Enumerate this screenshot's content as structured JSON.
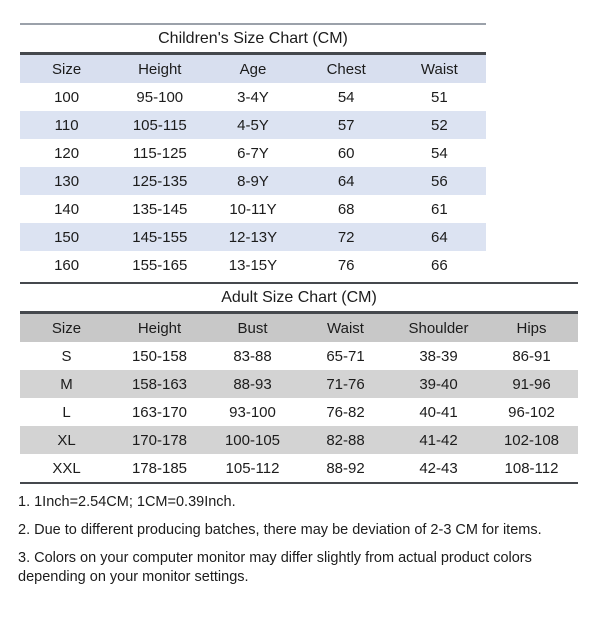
{
  "chart_data": [
    {
      "type": "table",
      "title": "Children's Size Chart (CM)",
      "columns": [
        "Size",
        "Height",
        "Age",
        "Chest",
        "Waist"
      ],
      "rows": [
        [
          "100",
          "95-100",
          "3-4Y",
          "54",
          "51"
        ],
        [
          "110",
          "105-115",
          "4-5Y",
          "57",
          "52"
        ],
        [
          "120",
          "115-125",
          "6-7Y",
          "60",
          "54"
        ],
        [
          "130",
          "125-135",
          "8-9Y",
          "64",
          "56"
        ],
        [
          "140",
          "135-145",
          "10-11Y",
          "68",
          "61"
        ],
        [
          "150",
          "145-155",
          "12-13Y",
          "72",
          "64"
        ],
        [
          "160",
          "155-165",
          "13-15Y",
          "76",
          "66"
        ]
      ]
    },
    {
      "type": "table",
      "title": "Adult Size Chart (CM)",
      "columns": [
        "Size",
        "Height",
        "Bust",
        "Waist",
        "Shoulder",
        "Hips"
      ],
      "rows": [
        [
          "S",
          "150-158",
          "83-88",
          "65-71",
          "38-39",
          "86-91"
        ],
        [
          "M",
          "158-163",
          "88-93",
          "71-76",
          "39-40",
          "91-96"
        ],
        [
          "L",
          "163-170",
          "93-100",
          "76-82",
          "40-41",
          "96-102"
        ],
        [
          "XL",
          "170-178",
          "100-105",
          "82-88",
          "41-42",
          "102-108"
        ],
        [
          "XXL",
          "178-185",
          "105-112",
          "88-92",
          "42-43",
          "108-112"
        ]
      ]
    }
  ],
  "notes": [
    "1. 1Inch=2.54CM; 1CM=0.39Inch.",
    "2. Due to different producing batches, there may be deviation of 2-3 CM for items.",
    "3. Colors on your computer monitor may differ slightly from actual product colors depending on your monitor settings."
  ],
  "colors": {
    "children_header": "#d8dfef",
    "children_stripe": "#dce3f2",
    "adult_header": "#c8c8c8",
    "adult_stripe": "#d3d3d3",
    "line_dark": "#45484d",
    "line_light": "#9ba1aa"
  }
}
